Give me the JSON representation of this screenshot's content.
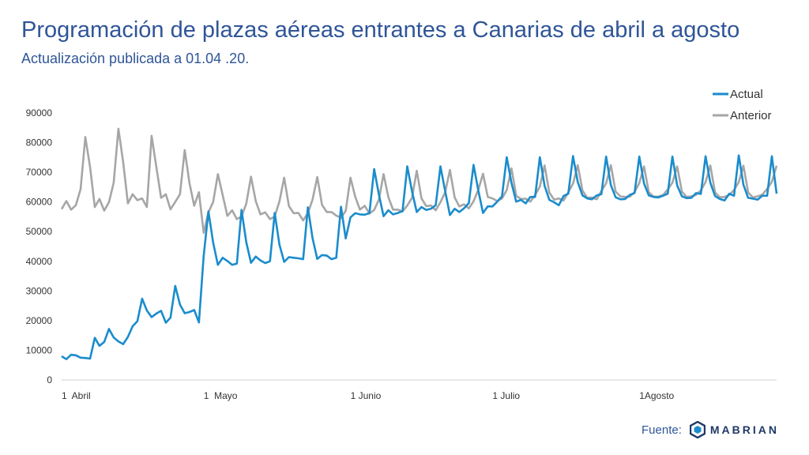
{
  "header": {
    "title": "Programación de plazas aéreas entrantes a Canarias de abril a agosto",
    "subtitle": "Actualización publicada a 01.04 .20."
  },
  "footer": {
    "source_label": "Fuente:",
    "brand": "MABRIAN",
    "logo_icon": "mabrian-hexagon-icon"
  },
  "colors": {
    "actual": "#1a8ccc",
    "anterior": "#a6a6a6",
    "title": "#2f5597",
    "axis": "#d0d0d0"
  },
  "chart_data": {
    "type": "line",
    "xlabel": "",
    "ylabel": "",
    "ylim": [
      0,
      90000
    ],
    "yticks": [
      0,
      10000,
      20000,
      30000,
      40000,
      50000,
      60000,
      70000,
      80000,
      90000
    ],
    "xticks": [
      {
        "day": 0,
        "label": "1  Abril"
      },
      {
        "day": 30,
        "label": "1  Mayo"
      },
      {
        "day": 61,
        "label": "1 Junio"
      },
      {
        "day": 91,
        "label": "1 Julio"
      },
      {
        "day": 122,
        "label": "1Agosto"
      }
    ],
    "x_start": "2020-04-01",
    "legend_position": "top-right",
    "grid": false,
    "series": [
      {
        "name": "Actual",
        "values": [
          8000,
          7000,
          8500,
          8300,
          7500,
          7400,
          7200,
          14200,
          11500,
          12800,
          17200,
          14300,
          13000,
          12100,
          14500,
          18100,
          19800,
          27400,
          23400,
          21200,
          22400,
          23300,
          19300,
          21000,
          31700,
          25400,
          22500,
          22900,
          23600,
          19400,
          41800,
          56800,
          46300,
          38800,
          41200,
          40100,
          38800,
          39200,
          57300,
          46500,
          39500,
          41600,
          40300,
          39400,
          40000,
          56300,
          45600,
          39800,
          41400,
          41200,
          41000,
          40700,
          58200,
          47800,
          40800,
          42100,
          41900,
          40700,
          41200,
          58400,
          47700,
          54800,
          56200,
          55800,
          55700,
          56200,
          71100,
          62500,
          55200,
          57200,
          55800,
          56300,
          56900,
          72000,
          63600,
          56600,
          58300,
          57300,
          57700,
          58900,
          72000,
          63600,
          55600,
          57700,
          56600,
          57900,
          59600,
          72500,
          63900,
          56300,
          58500,
          58500,
          60100,
          61900,
          75100,
          66400,
          60100,
          60700,
          59500,
          61700,
          61700,
          75100,
          65500,
          60700,
          59900,
          58900,
          62000,
          62800,
          75500,
          66700,
          62200,
          61200,
          60900,
          62200,
          62600,
          75300,
          65700,
          61600,
          60900,
          61000,
          62400,
          63000,
          75300,
          66200,
          62200,
          61700,
          61500,
          62100,
          62800,
          75300,
          65600,
          61900,
          61300,
          61400,
          63000,
          62700,
          75400,
          66500,
          62000,
          61000,
          60500,
          62800,
          62100,
          75700,
          65800,
          61400,
          61100,
          60800,
          62100,
          62100,
          75400,
          62800
        ],
        "color": "#1a8ccc"
      },
      {
        "name": "Anterior",
        "values": [
          57600,
          60300,
          57400,
          58900,
          64300,
          81900,
          71800,
          58300,
          61000,
          57100,
          59900,
          66500,
          84700,
          73400,
          59500,
          62600,
          60600,
          61200,
          58300,
          82300,
          71800,
          61400,
          62600,
          57500,
          60000,
          62600,
          77500,
          66400,
          58700,
          63300,
          49600,
          56500,
          60000,
          69400,
          62400,
          55300,
          57200,
          54200,
          55100,
          59400,
          68500,
          60300,
          55800,
          56500,
          54200,
          55100,
          60200,
          68200,
          58600,
          56200,
          56300,
          53800,
          56200,
          60800,
          68400,
          59000,
          56600,
          56600,
          55400,
          54700,
          57000,
          68200,
          61800,
          57400,
          58700,
          56100,
          57300,
          60800,
          69400,
          61700,
          57400,
          57400,
          56800,
          58800,
          61400,
          70500,
          61200,
          58600,
          58800,
          57200,
          59900,
          63300,
          70800,
          61500,
          58500,
          59200,
          57800,
          60200,
          64100,
          69500,
          61700,
          61200,
          60300,
          61200,
          64000,
          71300,
          62100,
          61000,
          61100,
          60100,
          62300,
          65200,
          72300,
          63200,
          60800,
          61200,
          60500,
          63200,
          66200,
          72400,
          63800,
          61400,
          61500,
          60900,
          63700,
          66300,
          72400,
          63500,
          61900,
          61700,
          61800,
          63300,
          66400,
          72000,
          63300,
          61800,
          61800,
          62300,
          64200,
          66500,
          72000,
          63500,
          61700,
          61900,
          62400,
          63900,
          66700,
          72300,
          63200,
          61600,
          61700,
          62400,
          64000,
          66700,
          72200,
          63200,
          61500,
          61900,
          62500,
          64400,
          66800,
          72200
        ],
        "color": "#a6a6a6"
      }
    ]
  }
}
